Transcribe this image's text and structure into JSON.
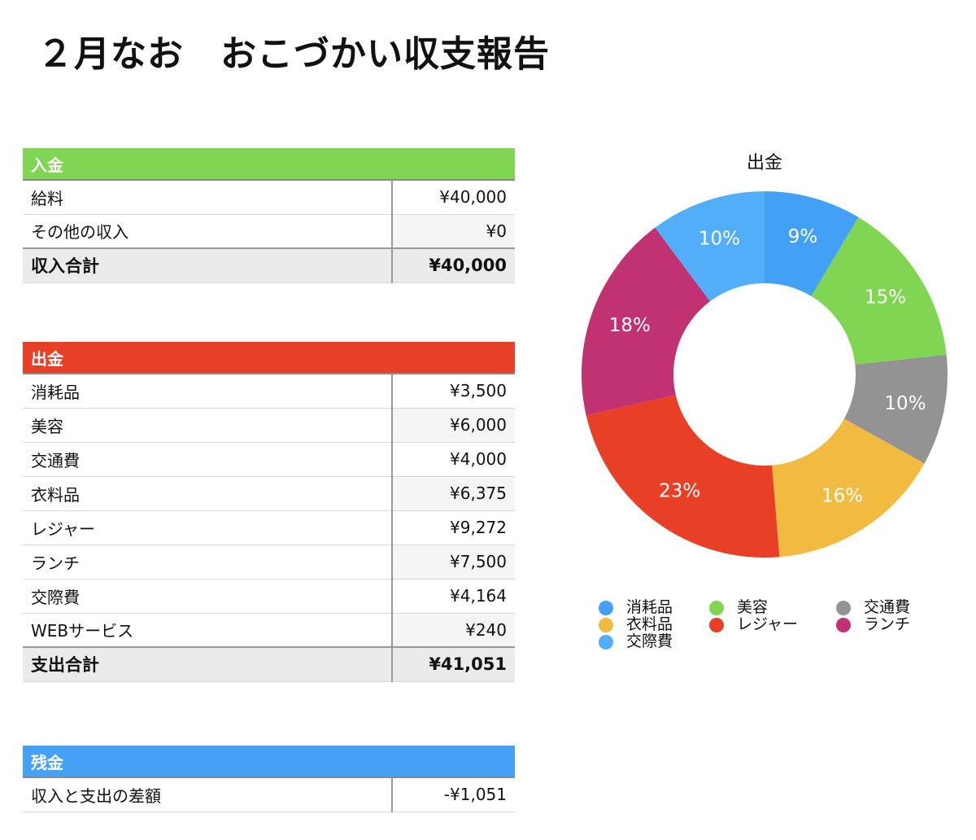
{
  "title": "２月なお　おこづかい収支報告",
  "income": {
    "header": "入金",
    "color": "#80d552",
    "rows": [
      {
        "label": "給料",
        "value": "¥40,000"
      },
      {
        "label": "その他の収入",
        "value": "¥0"
      }
    ],
    "total": {
      "label": "収入合計",
      "value": "¥40,000"
    }
  },
  "expense": {
    "header": "出金",
    "color": "#e84027",
    "rows": [
      {
        "label": "消耗品",
        "value": "¥3,500"
      },
      {
        "label": "美容",
        "value": "¥6,000"
      },
      {
        "label": "交通費",
        "value": "¥4,000"
      },
      {
        "label": "衣料品",
        "value": "¥6,375"
      },
      {
        "label": "レジャー",
        "value": "¥9,272"
      },
      {
        "label": "ランチ",
        "value": "¥7,500"
      },
      {
        "label": "交際費",
        "value": "¥4,164"
      },
      {
        "label": "WEBサービス",
        "value": "¥240"
      }
    ],
    "total": {
      "label": "支出合計",
      "value": "¥41,051"
    }
  },
  "balance": {
    "header": "残金",
    "color": "#45a1f5",
    "rows": [
      {
        "label": "収入と支出の差額",
        "value": "-¥1,051"
      }
    ]
  },
  "chart_data": {
    "type": "pie",
    "variant": "donut",
    "title": "出金",
    "categories": [
      "消耗品",
      "美容",
      "交通費",
      "衣料品",
      "レジャー",
      "ランチ",
      "交際費"
    ],
    "values": [
      3500,
      6000,
      4000,
      6375,
      9272,
      7500,
      4164
    ],
    "labels": [
      "9%",
      "15%",
      "10%",
      "16%",
      "23%",
      "18%",
      "10%"
    ],
    "colors": [
      "#42a0f5",
      "#80d552",
      "#939393",
      "#f0bb40",
      "#e84027",
      "#c03272",
      "#52aef8"
    ],
    "legend_position": "bottom"
  }
}
